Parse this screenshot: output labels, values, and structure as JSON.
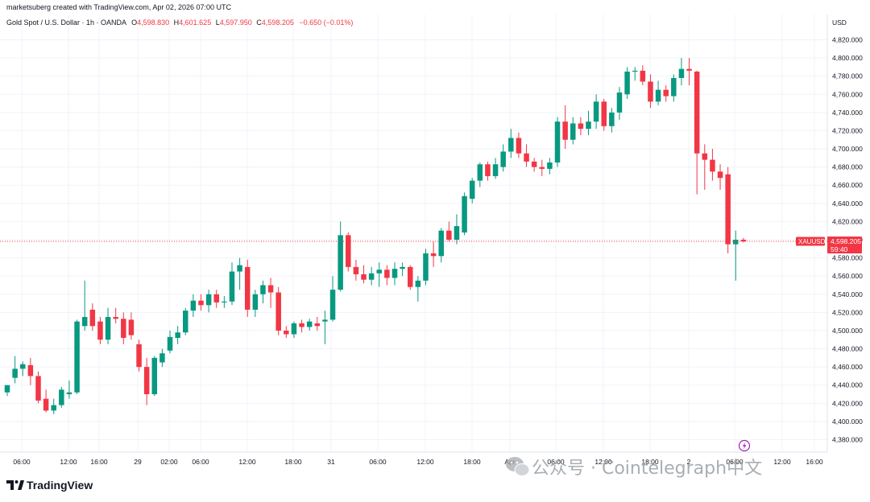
{
  "header": {
    "attribution": "marketsuberg created with TradingView.com, Apr 02, 2026 07:00 UTC",
    "symbol_title": "Gold Spot / U.S. Dollar · 1h · OANDA",
    "ohlc": [
      {
        "label": "O",
        "value": "4,598.830"
      },
      {
        "label": "H",
        "value": "4,601.625"
      },
      {
        "label": "L",
        "value": "4,597.950"
      },
      {
        "label": "C",
        "value": "4,598.205"
      }
    ],
    "change": "−0.650 (−0.01%)"
  },
  "price_axis": {
    "currency": "USD",
    "labels": [
      "4,820.000",
      "4,800.000",
      "4,780.000",
      "4,760.000",
      "4,740.000",
      "4,720.000",
      "4,700.000",
      "4,680.000",
      "4,660.000",
      "4,640.000",
      "4,620.000",
      "4,600.000",
      "4,580.000",
      "4,560.000",
      "4,540.000",
      "4,520.000",
      "4,500.000",
      "4,480.000",
      "4,460.000",
      "4,440.000",
      "4,420.000",
      "4,400.000",
      "4,380.000"
    ]
  },
  "price_tag": {
    "symbol": "XAUUSD",
    "price": "4,598.205",
    "countdown": "59:40"
  },
  "time_axis": {
    "labels": [
      "06:00",
      "12:00",
      "16:00",
      "29",
      "02:00",
      "06:00",
      "12:00",
      "18:00",
      "31",
      "06:00",
      "12:00",
      "18:00",
      "Apr",
      "06:00",
      "12:00",
      "18:00",
      "2",
      "06:00",
      "12:00",
      "16:00"
    ]
  },
  "footer": {
    "brand": "TradingView"
  },
  "watermark": {
    "text": "公众号 · Cointelegraph中文"
  },
  "colors": {
    "up": "#089981",
    "down": "#f23645",
    "grid": "#f0f3fa",
    "text": "#131722"
  },
  "icons": {
    "logo": "tradingview-logo-icon",
    "event": "lightning-icon",
    "wechat": "wechat-icon"
  },
  "chart_data": {
    "type": "candlestick",
    "title": "Gold Spot / U.S. Dollar · 1h · OANDA",
    "ylim": [
      4370,
      4830
    ],
    "grid": true,
    "last_price": 4598.205,
    "candles": [
      {
        "o": 4432,
        "h": 4440,
        "l": 4428,
        "c": 4440
      },
      {
        "o": 4448,
        "h": 4472,
        "l": 4442,
        "c": 4458
      },
      {
        "o": 4458,
        "h": 4466,
        "l": 4450,
        "c": 4463
      },
      {
        "o": 4462,
        "h": 4470,
        "l": 4440,
        "c": 4450
      },
      {
        "o": 4450,
        "h": 4455,
        "l": 4420,
        "c": 4423
      },
      {
        "o": 4425,
        "h": 4435,
        "l": 4410,
        "c": 4412
      },
      {
        "o": 4412,
        "h": 4425,
        "l": 4408,
        "c": 4418
      },
      {
        "o": 4418,
        "h": 4438,
        "l": 4415,
        "c": 4435
      },
      {
        "o": 4430,
        "h": 4445,
        "l": 4425,
        "c": 4432
      },
      {
        "o": 4432,
        "h": 4512,
        "l": 4430,
        "c": 4510
      },
      {
        "o": 4505,
        "h": 4555,
        "l": 4500,
        "c": 4515
      },
      {
        "o": 4523,
        "h": 4530,
        "l": 4500,
        "c": 4505
      },
      {
        "o": 4510,
        "h": 4515,
        "l": 4485,
        "c": 4490
      },
      {
        "o": 4490,
        "h": 4525,
        "l": 4485,
        "c": 4515
      },
      {
        "o": 4515,
        "h": 4525,
        "l": 4508,
        "c": 4513
      },
      {
        "o": 4513,
        "h": 4520,
        "l": 4485,
        "c": 4492
      },
      {
        "o": 4512,
        "h": 4520,
        "l": 4490,
        "c": 4495
      },
      {
        "o": 4485,
        "h": 4490,
        "l": 4455,
        "c": 4460
      },
      {
        "o": 4460,
        "h": 4470,
        "l": 4418,
        "c": 4430
      },
      {
        "o": 4430,
        "h": 4472,
        "l": 4428,
        "c": 4470
      },
      {
        "o": 4465,
        "h": 4480,
        "l": 4460,
        "c": 4475
      },
      {
        "o": 4478,
        "h": 4500,
        "l": 4475,
        "c": 4493
      },
      {
        "o": 4492,
        "h": 4505,
        "l": 4485,
        "c": 4498
      },
      {
        "o": 4498,
        "h": 4525,
        "l": 4495,
        "c": 4522
      },
      {
        "o": 4522,
        "h": 4540,
        "l": 4515,
        "c": 4533
      },
      {
        "o": 4533,
        "h": 4540,
        "l": 4522,
        "c": 4528
      },
      {
        "o": 4528,
        "h": 4545,
        "l": 4520,
        "c": 4540
      },
      {
        "o": 4540,
        "h": 4545,
        "l": 4525,
        "c": 4531
      },
      {
        "o": 4531,
        "h": 4538,
        "l": 4525,
        "c": 4532
      },
      {
        "o": 4532,
        "h": 4575,
        "l": 4528,
        "c": 4565
      },
      {
        "o": 4565,
        "h": 4580,
        "l": 4545,
        "c": 4572
      },
      {
        "o": 4570,
        "h": 4578,
        "l": 4515,
        "c": 4523
      },
      {
        "o": 4523,
        "h": 4545,
        "l": 4515,
        "c": 4540
      },
      {
        "o": 4540,
        "h": 4555,
        "l": 4530,
        "c": 4550
      },
      {
        "o": 4550,
        "h": 4558,
        "l": 4525,
        "c": 4542
      },
      {
        "o": 4542,
        "h": 4548,
        "l": 4495,
        "c": 4500
      },
      {
        "o": 4500,
        "h": 4505,
        "l": 4492,
        "c": 4496
      },
      {
        "o": 4496,
        "h": 4510,
        "l": 4492,
        "c": 4508
      },
      {
        "o": 4508,
        "h": 4512,
        "l": 4498,
        "c": 4504
      },
      {
        "o": 4504,
        "h": 4513,
        "l": 4500,
        "c": 4510
      },
      {
        "o": 4508,
        "h": 4515,
        "l": 4500,
        "c": 4505
      },
      {
        "o": 4510,
        "h": 4522,
        "l": 4485,
        "c": 4512
      },
      {
        "o": 4512,
        "h": 4560,
        "l": 4510,
        "c": 4545
      },
      {
        "o": 4545,
        "h": 4620,
        "l": 4543,
        "c": 4605
      },
      {
        "o": 4605,
        "h": 4608,
        "l": 4565,
        "c": 4570
      },
      {
        "o": 4570,
        "h": 4578,
        "l": 4555,
        "c": 4562
      },
      {
        "o": 4562,
        "h": 4572,
        "l": 4552,
        "c": 4556
      },
      {
        "o": 4556,
        "h": 4570,
        "l": 4550,
        "c": 4563
      },
      {
        "o": 4563,
        "h": 4575,
        "l": 4548,
        "c": 4567
      },
      {
        "o": 4567,
        "h": 4572,
        "l": 4550,
        "c": 4558
      },
      {
        "o": 4558,
        "h": 4575,
        "l": 4550,
        "c": 4568
      },
      {
        "o": 4568,
        "h": 4575,
        "l": 4560,
        "c": 4570
      },
      {
        "o": 4570,
        "h": 4572,
        "l": 4545,
        "c": 4548
      },
      {
        "o": 4548,
        "h": 4560,
        "l": 4532,
        "c": 4555
      },
      {
        "o": 4555,
        "h": 4590,
        "l": 4550,
        "c": 4585
      },
      {
        "o": 4585,
        "h": 4598,
        "l": 4570,
        "c": 4582
      },
      {
        "o": 4582,
        "h": 4613,
        "l": 4575,
        "c": 4610
      },
      {
        "o": 4610,
        "h": 4620,
        "l": 4598,
        "c": 4600
      },
      {
        "o": 4600,
        "h": 4628,
        "l": 4595,
        "c": 4615
      },
      {
        "o": 4608,
        "h": 4652,
        "l": 4605,
        "c": 4648
      },
      {
        "o": 4645,
        "h": 4668,
        "l": 4640,
        "c": 4665
      },
      {
        "o": 4665,
        "h": 4685,
        "l": 4658,
        "c": 4683
      },
      {
        "o": 4683,
        "h": 4686,
        "l": 4665,
        "c": 4670
      },
      {
        "o": 4670,
        "h": 4690,
        "l": 4667,
        "c": 4683
      },
      {
        "o": 4680,
        "h": 4705,
        "l": 4675,
        "c": 4697
      },
      {
        "o": 4697,
        "h": 4722,
        "l": 4690,
        "c": 4712
      },
      {
        "o": 4712,
        "h": 4718,
        "l": 4690,
        "c": 4695
      },
      {
        "o": 4695,
        "h": 4705,
        "l": 4680,
        "c": 4686
      },
      {
        "o": 4686,
        "h": 4690,
        "l": 4675,
        "c": 4680
      },
      {
        "o": 4680,
        "h": 4688,
        "l": 4670,
        "c": 4678
      },
      {
        "o": 4678,
        "h": 4690,
        "l": 4672,
        "c": 4685
      },
      {
        "o": 4685,
        "h": 4735,
        "l": 4680,
        "c": 4730
      },
      {
        "o": 4730,
        "h": 4748,
        "l": 4700,
        "c": 4710
      },
      {
        "o": 4710,
        "h": 4735,
        "l": 4705,
        "c": 4728
      },
      {
        "o": 4728,
        "h": 4735,
        "l": 4715,
        "c": 4722
      },
      {
        "o": 4722,
        "h": 4742,
        "l": 4715,
        "c": 4730
      },
      {
        "o": 4730,
        "h": 4760,
        "l": 4722,
        "c": 4752
      },
      {
        "o": 4752,
        "h": 4755,
        "l": 4720,
        "c": 4725
      },
      {
        "o": 4725,
        "h": 4745,
        "l": 4718,
        "c": 4740
      },
      {
        "o": 4740,
        "h": 4768,
        "l": 4732,
        "c": 4762
      },
      {
        "o": 4760,
        "h": 4790,
        "l": 4755,
        "c": 4785
      },
      {
        "o": 4785,
        "h": 4790,
        "l": 4775,
        "c": 4786
      },
      {
        "o": 4786,
        "h": 4792,
        "l": 4770,
        "c": 4774
      },
      {
        "o": 4774,
        "h": 4782,
        "l": 4745,
        "c": 4752
      },
      {
        "o": 4752,
        "h": 4775,
        "l": 4748,
        "c": 4765
      },
      {
        "o": 4765,
        "h": 4770,
        "l": 4752,
        "c": 4758
      },
      {
        "o": 4758,
        "h": 4782,
        "l": 4752,
        "c": 4778
      },
      {
        "o": 4778,
        "h": 4800,
        "l": 4770,
        "c": 4788
      },
      {
        "o": 4788,
        "h": 4800,
        "l": 4770,
        "c": 4786
      },
      {
        "o": 4785,
        "h": 4786,
        "l": 4650,
        "c": 4695
      },
      {
        "o": 4695,
        "h": 4705,
        "l": 4655,
        "c": 4688
      },
      {
        "o": 4688,
        "h": 4700,
        "l": 4665,
        "c": 4675
      },
      {
        "o": 4675,
        "h": 4683,
        "l": 4655,
        "c": 4668
      },
      {
        "o": 4672,
        "h": 4680,
        "l": 4585,
        "c": 4595
      },
      {
        "o": 4595,
        "h": 4610,
        "l": 4555,
        "c": 4600
      },
      {
        "o": 4600,
        "h": 4602,
        "l": 4597,
        "c": 4598.2
      }
    ]
  }
}
